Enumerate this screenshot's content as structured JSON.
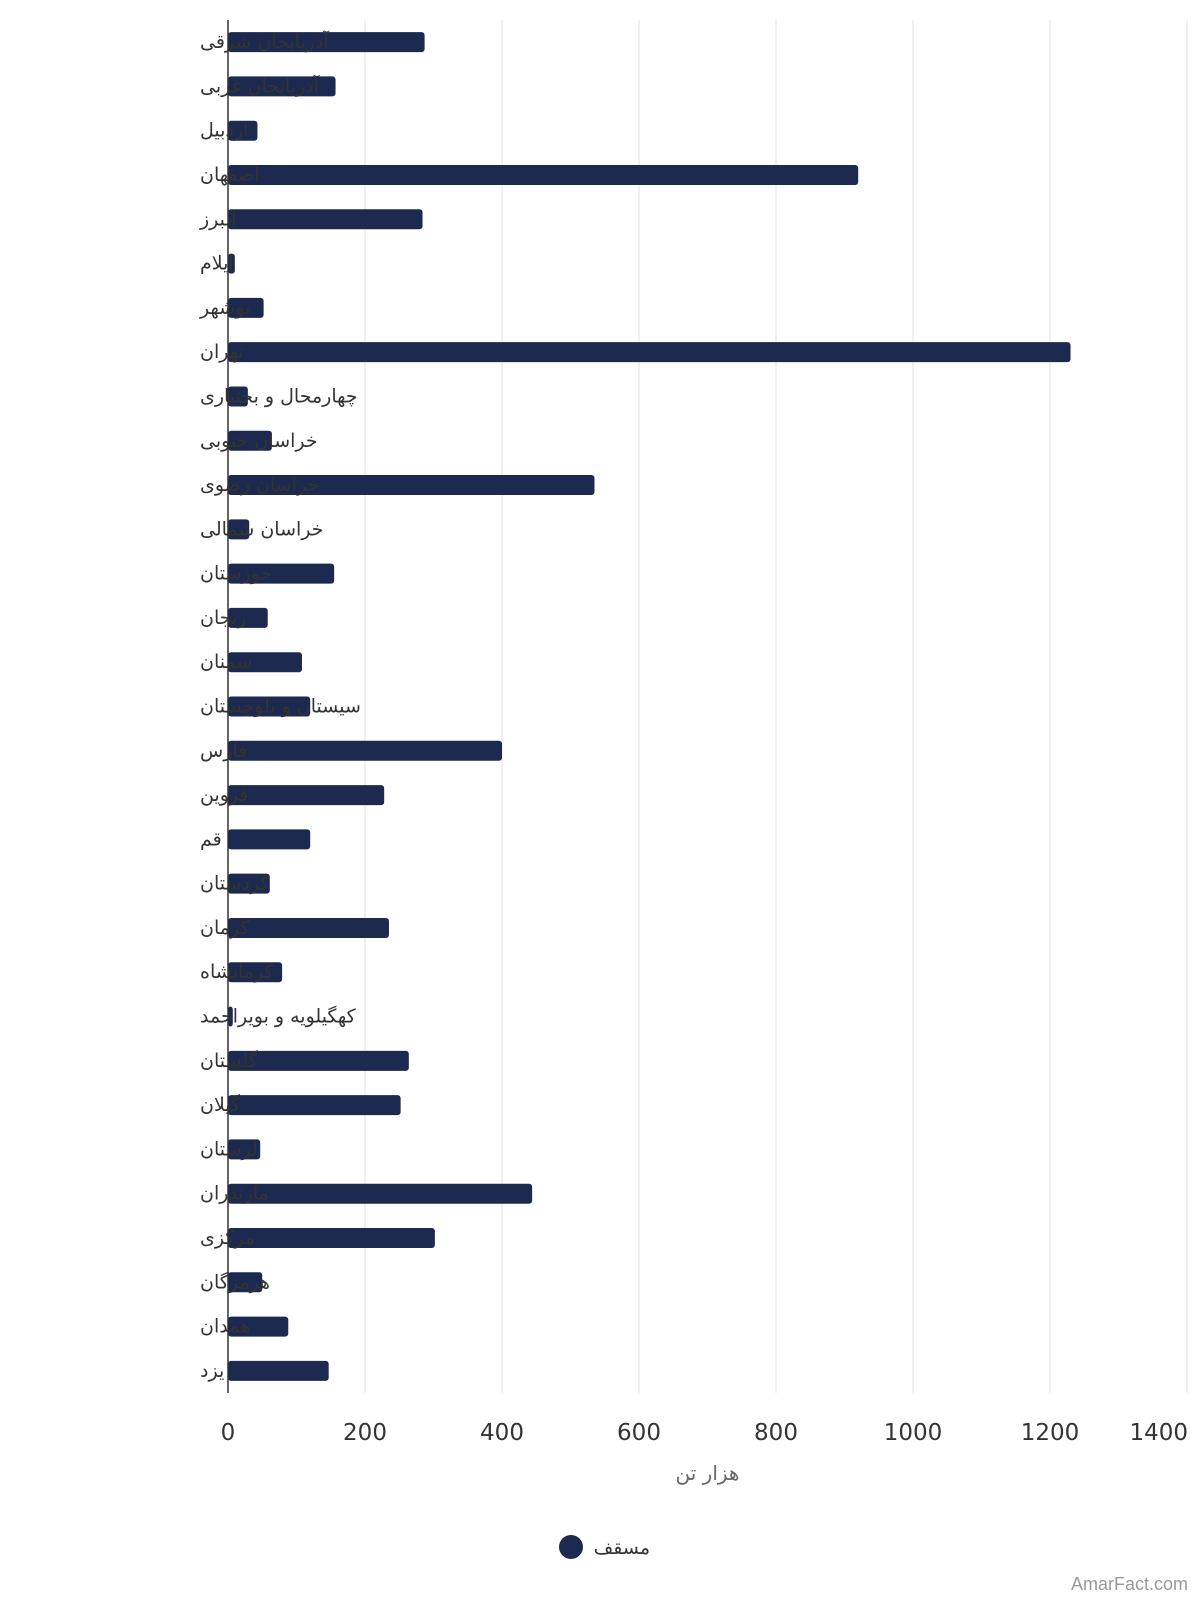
{
  "chart_data": {
    "type": "bar",
    "orientation": "horizontal",
    "categories": [
      "آذربایجان شرقی",
      "آذربایجان غربی",
      "اردبیل",
      "اصفهان",
      "البرز",
      "ایلام",
      "بوشهر",
      "تهران",
      "چهارمحال و بختیاری",
      "خراسان جنوبی",
      "خراسان رضوی",
      "خراسان شمالی",
      "خوزستان",
      "زنجان",
      "سمنان",
      "سیستان و بلوچستان",
      "فارس",
      "قزوین",
      "قم",
      "کردستان",
      "کرمان",
      "کرمانشاه",
      "کهگیلویه و بویراحمد",
      "گلستان",
      "گیلان",
      "لرستان",
      "مازندران",
      "مرکزی",
      "هرمزگان",
      "همدان",
      "یزد"
    ],
    "series": [
      {
        "name": "مسقف",
        "color": "#1b2a4e",
        "values": [
          287,
          157,
          43,
          920,
          284,
          10,
          52,
          1230,
          29,
          64,
          535,
          31,
          155,
          58,
          108,
          120,
          400,
          228,
          120,
          61,
          235,
          79,
          7,
          264,
          252,
          47,
          444,
          302,
          50,
          88,
          147
        ]
      }
    ],
    "xlabel": "هزار تن",
    "xlim": [
      0,
      1400
    ],
    "xticks": [
      0,
      200,
      400,
      600,
      800,
      1000,
      1200,
      1400
    ],
    "grid": true,
    "legend_position": "bottom",
    "credit": "AmarFact.com"
  }
}
